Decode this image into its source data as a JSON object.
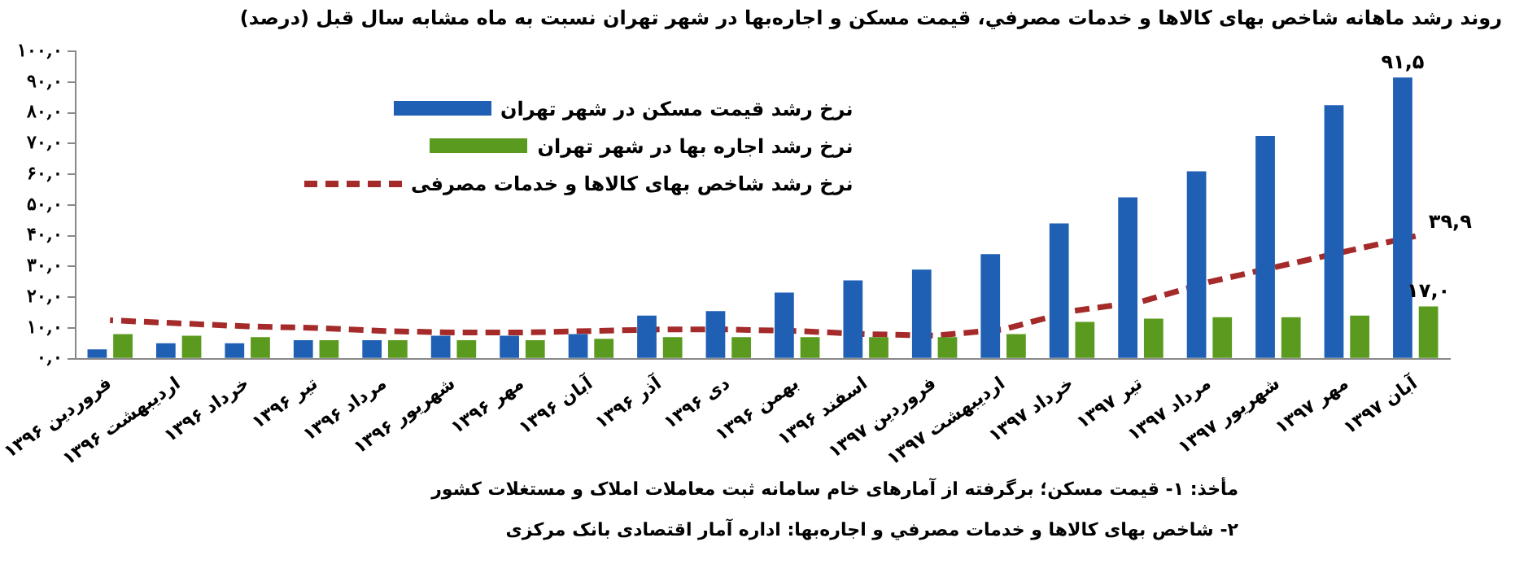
{
  "chart_data": {
    "type": "bar",
    "title": "روند رشد ماهانه شاخص بهای کالاها و خدمات مصرفي، قيمت مسکن و اجاره‌بها در شهر تهران نسبت به ماه مشابه سال قبل (درصد)",
    "categories": [
      "فروردین ۱۳۹۶",
      "اردیبهشت ۱۳۹۶",
      "خرداد ۱۳۹۶",
      "تیر ۱۳۹۶",
      "مرداد ۱۳۹۶",
      "شهریور ۱۳۹۶",
      "مهر ۱۳۹۶",
      "آبان ۱۳۹۶",
      "آذر ۱۳۹۶",
      "دی ۱۳۹۶",
      "بهمن ۱۳۹۶",
      "اسفند ۱۳۹۶",
      "فروردین ۱۳۹۷",
      "اردیبهشت ۱۳۹۷",
      "خرداد ۱۳۹۷",
      "تیر ۱۳۹۷",
      "مرداد ۱۳۹۷",
      "شهریور ۱۳۹۷",
      "مهر ۱۳۹۷",
      "آبان ۱۳۹۷"
    ],
    "series": [
      {
        "name": "نرخ رشد قیمت مسکن در شهر تهران",
        "color": "#1f5fb4",
        "values": [
          3,
          5,
          5,
          6,
          6,
          7.5,
          7.5,
          8,
          14,
          15.5,
          21.5,
          25.5,
          29,
          34,
          44,
          52.5,
          61,
          72.5,
          82.5,
          91.5
        ],
        "value_labels": [
          null,
          null,
          null,
          null,
          null,
          null,
          null,
          null,
          null,
          null,
          null,
          null,
          null,
          null,
          null,
          null,
          null,
          null,
          null,
          "۹۱,۵"
        ]
      },
      {
        "name": "نرخ رشد اجاره بها در شهر تهران",
        "color": "#5a9a1e",
        "values": [
          8,
          7.5,
          7,
          6,
          6,
          6,
          6,
          6.5,
          7,
          7,
          7,
          7,
          7,
          8,
          12,
          13,
          13.5,
          13.5,
          14,
          17
        ],
        "value_labels": [
          null,
          null,
          null,
          null,
          null,
          null,
          null,
          null,
          null,
          null,
          null,
          null,
          null,
          null,
          null,
          null,
          null,
          null,
          null,
          "۱۷,۰"
        ]
      },
      {
        "name": "نرخ رشد شاخص بهای کالاها و خدمات مصرفی",
        "type": "line",
        "color": "#a52a2a",
        "line_style": "dashed",
        "values": [
          12.5,
          11.5,
          10.5,
          10,
          9,
          8.5,
          8.5,
          9,
          9.5,
          9.5,
          9,
          8,
          7.5,
          9.5,
          15.5,
          18.5,
          25,
          30,
          35,
          39.9
        ],
        "value_labels": [
          null,
          null,
          null,
          null,
          null,
          null,
          null,
          null,
          null,
          null,
          null,
          null,
          null,
          null,
          null,
          null,
          null,
          null,
          null,
          "۳۹,۹"
        ]
      }
    ],
    "ylim": [
      0,
      100
    ],
    "yticks": [
      {
        "value": 0,
        "label": "۰,۰"
      },
      {
        "value": 10,
        "label": "۱۰,۰"
      },
      {
        "value": 20,
        "label": "۲۰,۰"
      },
      {
        "value": 30,
        "label": "۳۰,۰"
      },
      {
        "value": 40,
        "label": "۴۰,۰"
      },
      {
        "value": 50,
        "label": "۵۰,۰"
      },
      {
        "value": 60,
        "label": "۶۰,۰"
      },
      {
        "value": 70,
        "label": "۷۰,۰"
      },
      {
        "value": 80,
        "label": "۸۰,۰"
      },
      {
        "value": 90,
        "label": "۹۰,۰"
      },
      {
        "value": 100,
        "label": "۱۰۰,۰"
      }
    ],
    "grid": false,
    "legend": "top left",
    "marker": "none",
    "annotations": [
      "مأخذ: ۱- قیمت مسکن؛ برگرفته از آمارهای خام سامانه ثبت معاملات املاک و مستغلات کشور",
      "۲- شاخص بهای کالاها و خدمات مصرفي و اجاره‌بها: اداره آمار اقتصادی بانک مرکزی"
    ]
  }
}
